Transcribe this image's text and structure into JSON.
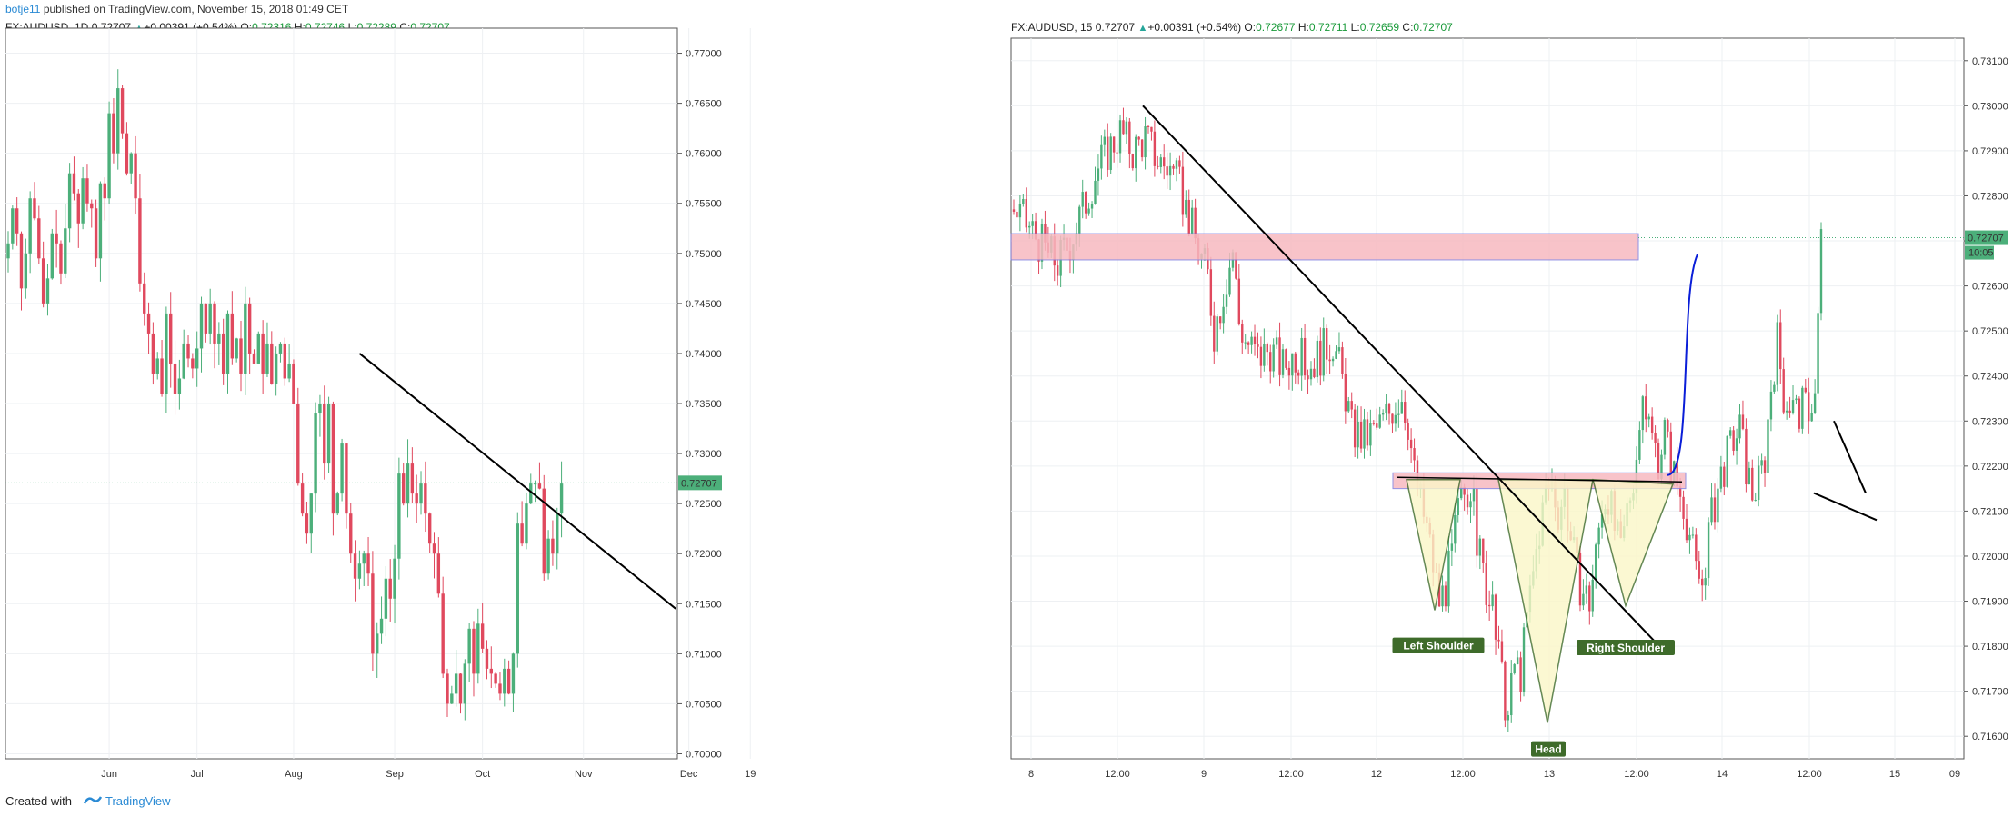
{
  "header": {
    "user": "botje11",
    "published_text": "published on TradingView.com, November 15, 2018 01:49 CET"
  },
  "footer": {
    "created_with": "Created with",
    "brand": "TradingView"
  },
  "colors": {
    "up": "#4caf7a",
    "down": "#e0495e",
    "trend": "#000000",
    "zone_fill": "#f7b9c0",
    "zone_border": "#7e7ee0",
    "projection": "#0a1ed8",
    "pattern_fill": "#fbf7c8",
    "label_bg": "#3e6b2a",
    "price_tag": "#4caf7a"
  },
  "legends": [
    {
      "symbol": "FX:AUDUSD, 1D",
      "last": "0.72707",
      "change": "+0.00391 (+0.54%)",
      "o_label": "O:",
      "o": "0.72316",
      "h_label": "H:",
      "h": "0.72746",
      "l_label": "L:",
      "l": "0.72289",
      "c_label": "C:",
      "c": "0.72707"
    },
    {
      "symbol": "FX:AUDUSD, 15",
      "last": "0.72707",
      "change": "+0.00391 (+0.54%)",
      "o_label": "O:",
      "o": "0.72677",
      "h_label": "H:",
      "h": "0.72711",
      "l_label": "L:",
      "l": "0.72659",
      "c_label": "C:",
      "c": "0.72707"
    }
  ],
  "chart_data": [
    {
      "type": "candlestick",
      "name": "FX:AUDUSD, 1D",
      "ylim": [
        0.6995,
        0.7725
      ],
      "y_ticks": [
        "0.77000",
        "0.76500",
        "0.76000",
        "0.75500",
        "0.75000",
        "0.74500",
        "0.74000",
        "0.73500",
        "0.73000",
        "0.72500",
        "0.72000",
        "0.71500",
        "0.71000",
        "0.70500",
        "0.70000"
      ],
      "x_ticks": [
        "Jun",
        "Jul",
        "Aug",
        "Sep",
        "Oct",
        "Nov",
        "Dec",
        "19"
      ],
      "x_ticks_index": [
        23,
        43,
        65,
        88,
        108,
        131,
        155,
        169
      ],
      "current_price_label": "0.72707",
      "current_price": 0.72707,
      "grid": true,
      "closes": [
        0.751,
        0.7545,
        0.752,
        0.7465,
        0.75,
        0.7555,
        0.7535,
        0.7495,
        0.745,
        0.7475,
        0.752,
        0.751,
        0.748,
        0.7525,
        0.758,
        0.756,
        0.753,
        0.7575,
        0.755,
        0.7545,
        0.7495,
        0.757,
        0.7555,
        0.764,
        0.76,
        0.7665,
        0.762,
        0.758,
        0.76,
        0.7555,
        0.747,
        0.744,
        0.742,
        0.738,
        0.7395,
        0.736,
        0.744,
        0.739,
        0.736,
        0.7375,
        0.741,
        0.7395,
        0.7385,
        0.7405,
        0.745,
        0.742,
        0.745,
        0.741,
        0.742,
        0.738,
        0.744,
        0.7395,
        0.7415,
        0.738,
        0.745,
        0.74,
        0.739,
        0.742,
        0.738,
        0.741,
        0.737,
        0.74,
        0.741,
        0.7375,
        0.739,
        0.735,
        0.727,
        0.724,
        0.722,
        0.726,
        0.734,
        0.735,
        0.729,
        0.735,
        0.724,
        0.726,
        0.731,
        0.724,
        0.72,
        0.7175,
        0.719,
        0.72,
        0.718,
        0.71,
        0.712,
        0.7135,
        0.7175,
        0.7155,
        0.7195,
        0.728,
        0.725,
        0.729,
        0.726,
        0.725,
        0.727,
        0.724,
        0.721,
        0.72,
        0.716,
        0.708,
        0.705,
        0.706,
        0.708,
        0.705,
        0.709,
        0.7125,
        0.708,
        0.713,
        0.7105,
        0.7085,
        0.708,
        0.707,
        0.706,
        0.7085,
        0.706,
        0.71,
        0.723,
        0.721,
        0.725,
        0.727,
        0.727,
        0.7265,
        0.718,
        0.7215,
        0.72,
        0.724,
        0.727
      ],
      "highs_offset": 0.0025,
      "lows_offset": 0.0025,
      "trendline": {
        "from_index": 80,
        "from_price": 0.74,
        "to_index": 152,
        "to_price": 0.7145
      }
    },
    {
      "type": "candlestick",
      "name": "FX:AUDUSD, 15",
      "ylim": [
        0.7155,
        0.7315
      ],
      "y_ticks": [
        "0.73100",
        "0.73000",
        "0.72900",
        "0.72800",
        "0.72700",
        "0.72600",
        "0.72500",
        "0.72400",
        "0.72300",
        "0.72200",
        "0.72100",
        "0.72000",
        "0.71900",
        "0.71800",
        "0.71700",
        "0.71600"
      ],
      "x_ticks": [
        "8",
        "12:00",
        "9",
        "12:00",
        "12",
        "12:00",
        "13",
        "12:00",
        "14",
        "12:00",
        "15",
        "09"
      ],
      "current_price_label": "0.72707",
      "current_price": 0.72707,
      "countdown_label": "10:05",
      "annotations": [
        "Left Shoulder",
        "Head",
        "Right Shoulder"
      ],
      "pattern": "inverse head and shoulders",
      "resistance_zone": [
        0.7268,
        0.7271
      ],
      "neckline_zone": [
        0.7215,
        0.72185
      ],
      "path": [
        [
          0,
          0.7277
        ],
        [
          6,
          0.7272
        ],
        [
          10,
          0.7268
        ],
        [
          14,
          0.7265
        ],
        [
          18,
          0.727
        ],
        [
          22,
          0.7277
        ],
        [
          26,
          0.7285
        ],
        [
          30,
          0.729
        ],
        [
          34,
          0.7294
        ],
        [
          38,
          0.729
        ],
        [
          42,
          0.7293
        ],
        [
          46,
          0.7288
        ],
        [
          50,
          0.7286
        ],
        [
          54,
          0.728
        ],
        [
          58,
          0.727
        ],
        [
          62,
          0.7262
        ],
        [
          64,
          0.725
        ],
        [
          66,
          0.7256
        ],
        [
          68,
          0.7262
        ],
        [
          70,
          0.7268
        ],
        [
          72,
          0.7252
        ],
        [
          74,
          0.7248
        ],
        [
          78,
          0.7244
        ],
        [
          82,
          0.7246
        ],
        [
          86,
          0.7242
        ],
        [
          90,
          0.7245
        ],
        [
          94,
          0.7242
        ],
        [
          98,
          0.7245
        ],
        [
          102,
          0.7248
        ],
        [
          106,
          0.7236
        ],
        [
          108,
          0.7228
        ],
        [
          112,
          0.7226
        ],
        [
          116,
          0.7228
        ],
        [
          120,
          0.7232
        ],
        [
          124,
          0.7236
        ],
        [
          126,
          0.723
        ],
        [
          128,
          0.7218
        ],
        [
          130,
          0.7212
        ],
        [
          132,
          0.7206
        ],
        [
          134,
          0.7198
        ],
        [
          136,
          0.719
        ],
        [
          138,
          0.7193
        ],
        [
          140,
          0.72
        ],
        [
          142,
          0.721
        ],
        [
          144,
          0.7214
        ],
        [
          146,
          0.7216
        ],
        [
          148,
          0.7204
        ],
        [
          150,
          0.7196
        ],
        [
          152,
          0.719
        ],
        [
          154,
          0.7183
        ],
        [
          156,
          0.7172
        ],
        [
          158,
          0.7164
        ],
        [
          160,
          0.7176
        ],
        [
          162,
          0.7174
        ],
        [
          164,
          0.7186
        ],
        [
          166,
          0.7196
        ],
        [
          168,
          0.7206
        ],
        [
          170,
          0.7214
        ],
        [
          172,
          0.7216
        ],
        [
          174,
          0.721
        ],
        [
          176,
          0.7214
        ],
        [
          178,
          0.7204
        ],
        [
          180,
          0.7196
        ],
        [
          182,
          0.7192
        ],
        [
          184,
          0.719
        ],
        [
          186,
          0.72
        ],
        [
          188,
          0.7212
        ],
        [
          190,
          0.7214
        ],
        [
          192,
          0.7206
        ],
        [
          194,
          0.72
        ],
        [
          196,
          0.721
        ],
        [
          198,
          0.7218
        ],
        [
          200,
          0.7228
        ],
        [
          202,
          0.7233
        ],
        [
          204,
          0.7226
        ],
        [
          206,
          0.7222
        ],
        [
          208,
          0.7228
        ],
        [
          210,
          0.722
        ],
        [
          212,
          0.7216
        ],
        [
          214,
          0.7212
        ],
        [
          216,
          0.7205
        ],
        [
          218,
          0.7196
        ],
        [
          220,
          0.7194
        ],
        [
          222,
          0.7205
        ],
        [
          224,
          0.7212
        ],
        [
          226,
          0.7218
        ],
        [
          228,
          0.7222
        ],
        [
          230,
          0.7226
        ],
        [
          232,
          0.7228
        ],
        [
          234,
          0.722
        ],
        [
          236,
          0.7214
        ],
        [
          238,
          0.7216
        ],
        [
          240,
          0.7222
        ],
        [
          242,
          0.7238
        ],
        [
          244,
          0.7248
        ],
        [
          246,
          0.7236
        ],
        [
          248,
          0.7234
        ],
        [
          250,
          0.7232
        ],
        [
          253,
          0.7233
        ],
        [
          256,
          0.7235
        ],
        [
          258,
          0.727
        ]
      ],
      "candles_total": 258
    }
  ]
}
